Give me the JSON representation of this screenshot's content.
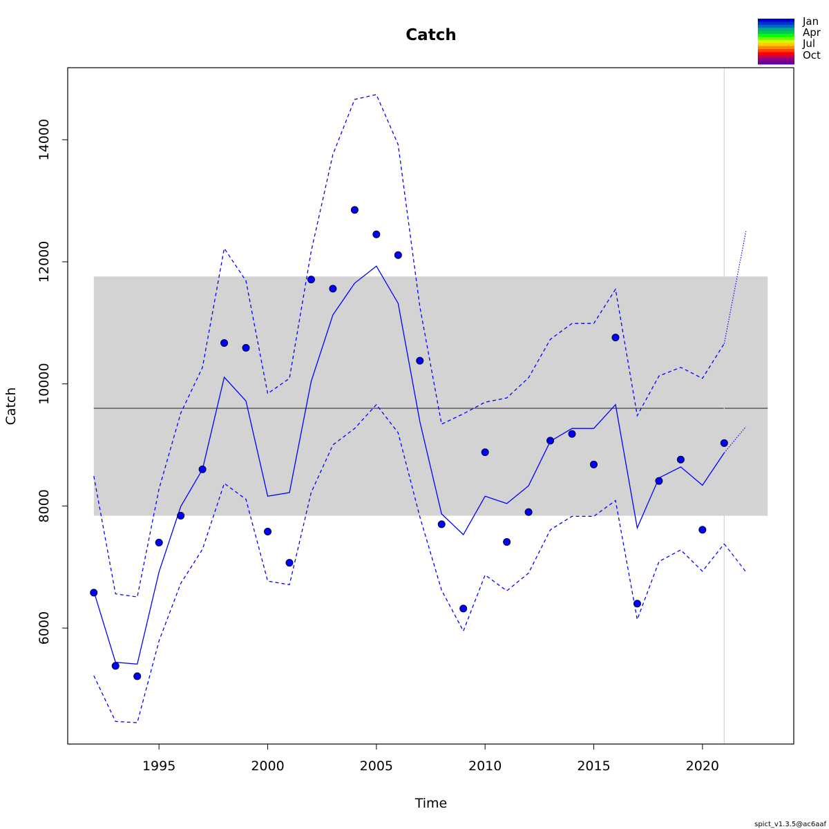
{
  "chart_data": {
    "type": "line",
    "title": "Catch",
    "xlabel": "Time",
    "ylabel": "Catch",
    "xlim": [
      1990.8,
      2024.2
    ],
    "ylim": [
      4100,
      15180
    ],
    "x_ticks": [
      1995,
      2000,
      2005,
      2010,
      2015,
      2020
    ],
    "y_ticks": [
      6000,
      8000,
      10000,
      12000,
      14000
    ],
    "x_tick_labels": [
      "1995",
      "2000",
      "2005",
      "2010",
      "2015",
      "2020"
    ],
    "y_tick_labels": [
      "6000",
      "8000",
      "10000",
      "12000",
      "14000"
    ],
    "msy_band": {
      "x_range": [
        1992,
        2023
      ],
      "lower": 7840,
      "upper": 11760,
      "median": 9600
    },
    "vertical_line_x": 2021,
    "observations": {
      "x": [
        1992,
        1993,
        1994,
        1995,
        1996,
        1997,
        1998,
        1999,
        2000,
        2001,
        2002,
        2003,
        2004,
        2005,
        2006,
        2007,
        2008,
        2009,
        2010,
        2011,
        2012,
        2013,
        2014,
        2015,
        2016,
        2017,
        2018,
        2019,
        2020,
        2021
      ],
      "y": [
        6580,
        5380,
        5210,
        7400,
        7840,
        8600,
        10670,
        10590,
        7580,
        7070,
        11710,
        11560,
        12850,
        12450,
        12110,
        10380,
        7700,
        6320,
        8880,
        7410,
        7900,
        9070,
        9180,
        8680,
        10760,
        6400,
        8410,
        8760,
        7610,
        9030
      ]
    },
    "series": [
      {
        "role": "estimate",
        "x": [
          1992,
          1993,
          1994,
          1995,
          1996,
          1997,
          1998,
          1999,
          2000,
          2001,
          2002,
          2003,
          2004,
          2005,
          2006,
          2007,
          2008,
          2009,
          2010,
          2011,
          2012,
          2013,
          2014,
          2015,
          2016,
          2017,
          2018,
          2019,
          2020,
          2021
        ],
        "y": [
          6600,
          5440,
          5410,
          6920,
          7990,
          8600,
          10110,
          9720,
          8160,
          8220,
          10040,
          11130,
          11650,
          11930,
          11320,
          9380,
          7870,
          7530,
          8160,
          8040,
          8330,
          9060,
          9270,
          9270,
          9660,
          7640,
          8460,
          8640,
          8340,
          8870
        ]
      },
      {
        "role": "upper",
        "x": [
          1992,
          1993,
          1994,
          1995,
          1996,
          1997,
          1998,
          1999,
          2000,
          2001,
          2002,
          2003,
          2004,
          2005,
          2006,
          2007,
          2008,
          2009,
          2010,
          2011,
          2012,
          2013,
          2014,
          2015,
          2016,
          2017,
          2018,
          2019,
          2020,
          2021
        ],
        "y": [
          8490,
          6560,
          6510,
          8280,
          9520,
          10270,
          12220,
          11690,
          9840,
          10090,
          12170,
          13760,
          14660,
          14740,
          13920,
          11260,
          9340,
          9510,
          9700,
          9770,
          10100,
          10730,
          10990,
          10990,
          11550,
          9480,
          10130,
          10270,
          10090,
          10660
        ]
      },
      {
        "role": "lower",
        "x": [
          1992,
          1993,
          1994,
          1995,
          1996,
          1997,
          1998,
          1999,
          2000,
          2001,
          2002,
          2003,
          2004,
          2005,
          2006,
          2007,
          2008,
          2009,
          2010,
          2011,
          2012,
          2013,
          2014,
          2015,
          2016,
          2017,
          2018,
          2019,
          2020,
          2021
        ],
        "y": [
          5220,
          4470,
          4450,
          5790,
          6730,
          7290,
          8370,
          8110,
          6770,
          6710,
          8220,
          9000,
          9270,
          9660,
          9200,
          7820,
          6620,
          5950,
          6870,
          6610,
          6900,
          7610,
          7830,
          7830,
          8090,
          6140,
          7090,
          7280,
          6930,
          7380
        ]
      },
      {
        "role": "forecast",
        "x": [
          2021,
          2022
        ],
        "y": [
          8870,
          9300
        ]
      },
      {
        "role": "forecast-upper",
        "x": [
          2021,
          2022
        ],
        "y": [
          10660,
          12500
        ]
      },
      {
        "role": "forecast-lower",
        "x": [
          2021,
          2022
        ],
        "y": [
          7380,
          6920
        ]
      }
    ],
    "legend": {
      "placement": "top-right",
      "labels": [
        "Jan",
        "Apr",
        "Jul",
        "Oct"
      ],
      "colors": [
        "#0000CC",
        "#0033CC",
        "#0066CC",
        "#00AA88",
        "#00CC44",
        "#00FF00",
        "#66FF00",
        "#CCFF00",
        "#FFCC00",
        "#FF8800",
        "#FF4400",
        "#FF0000",
        "#CC0044",
        "#880088",
        "#660099"
      ]
    },
    "colors": {
      "line": "#0000FF",
      "point_fill": "#0000FF",
      "point_stroke": "#000033",
      "band": "#D3D3D3",
      "median_line": "#5A5A5A",
      "vertical_line": "#D3D3D3"
    }
  },
  "footer": {
    "text": "spict_v1.3.5@ac6aaf"
  }
}
